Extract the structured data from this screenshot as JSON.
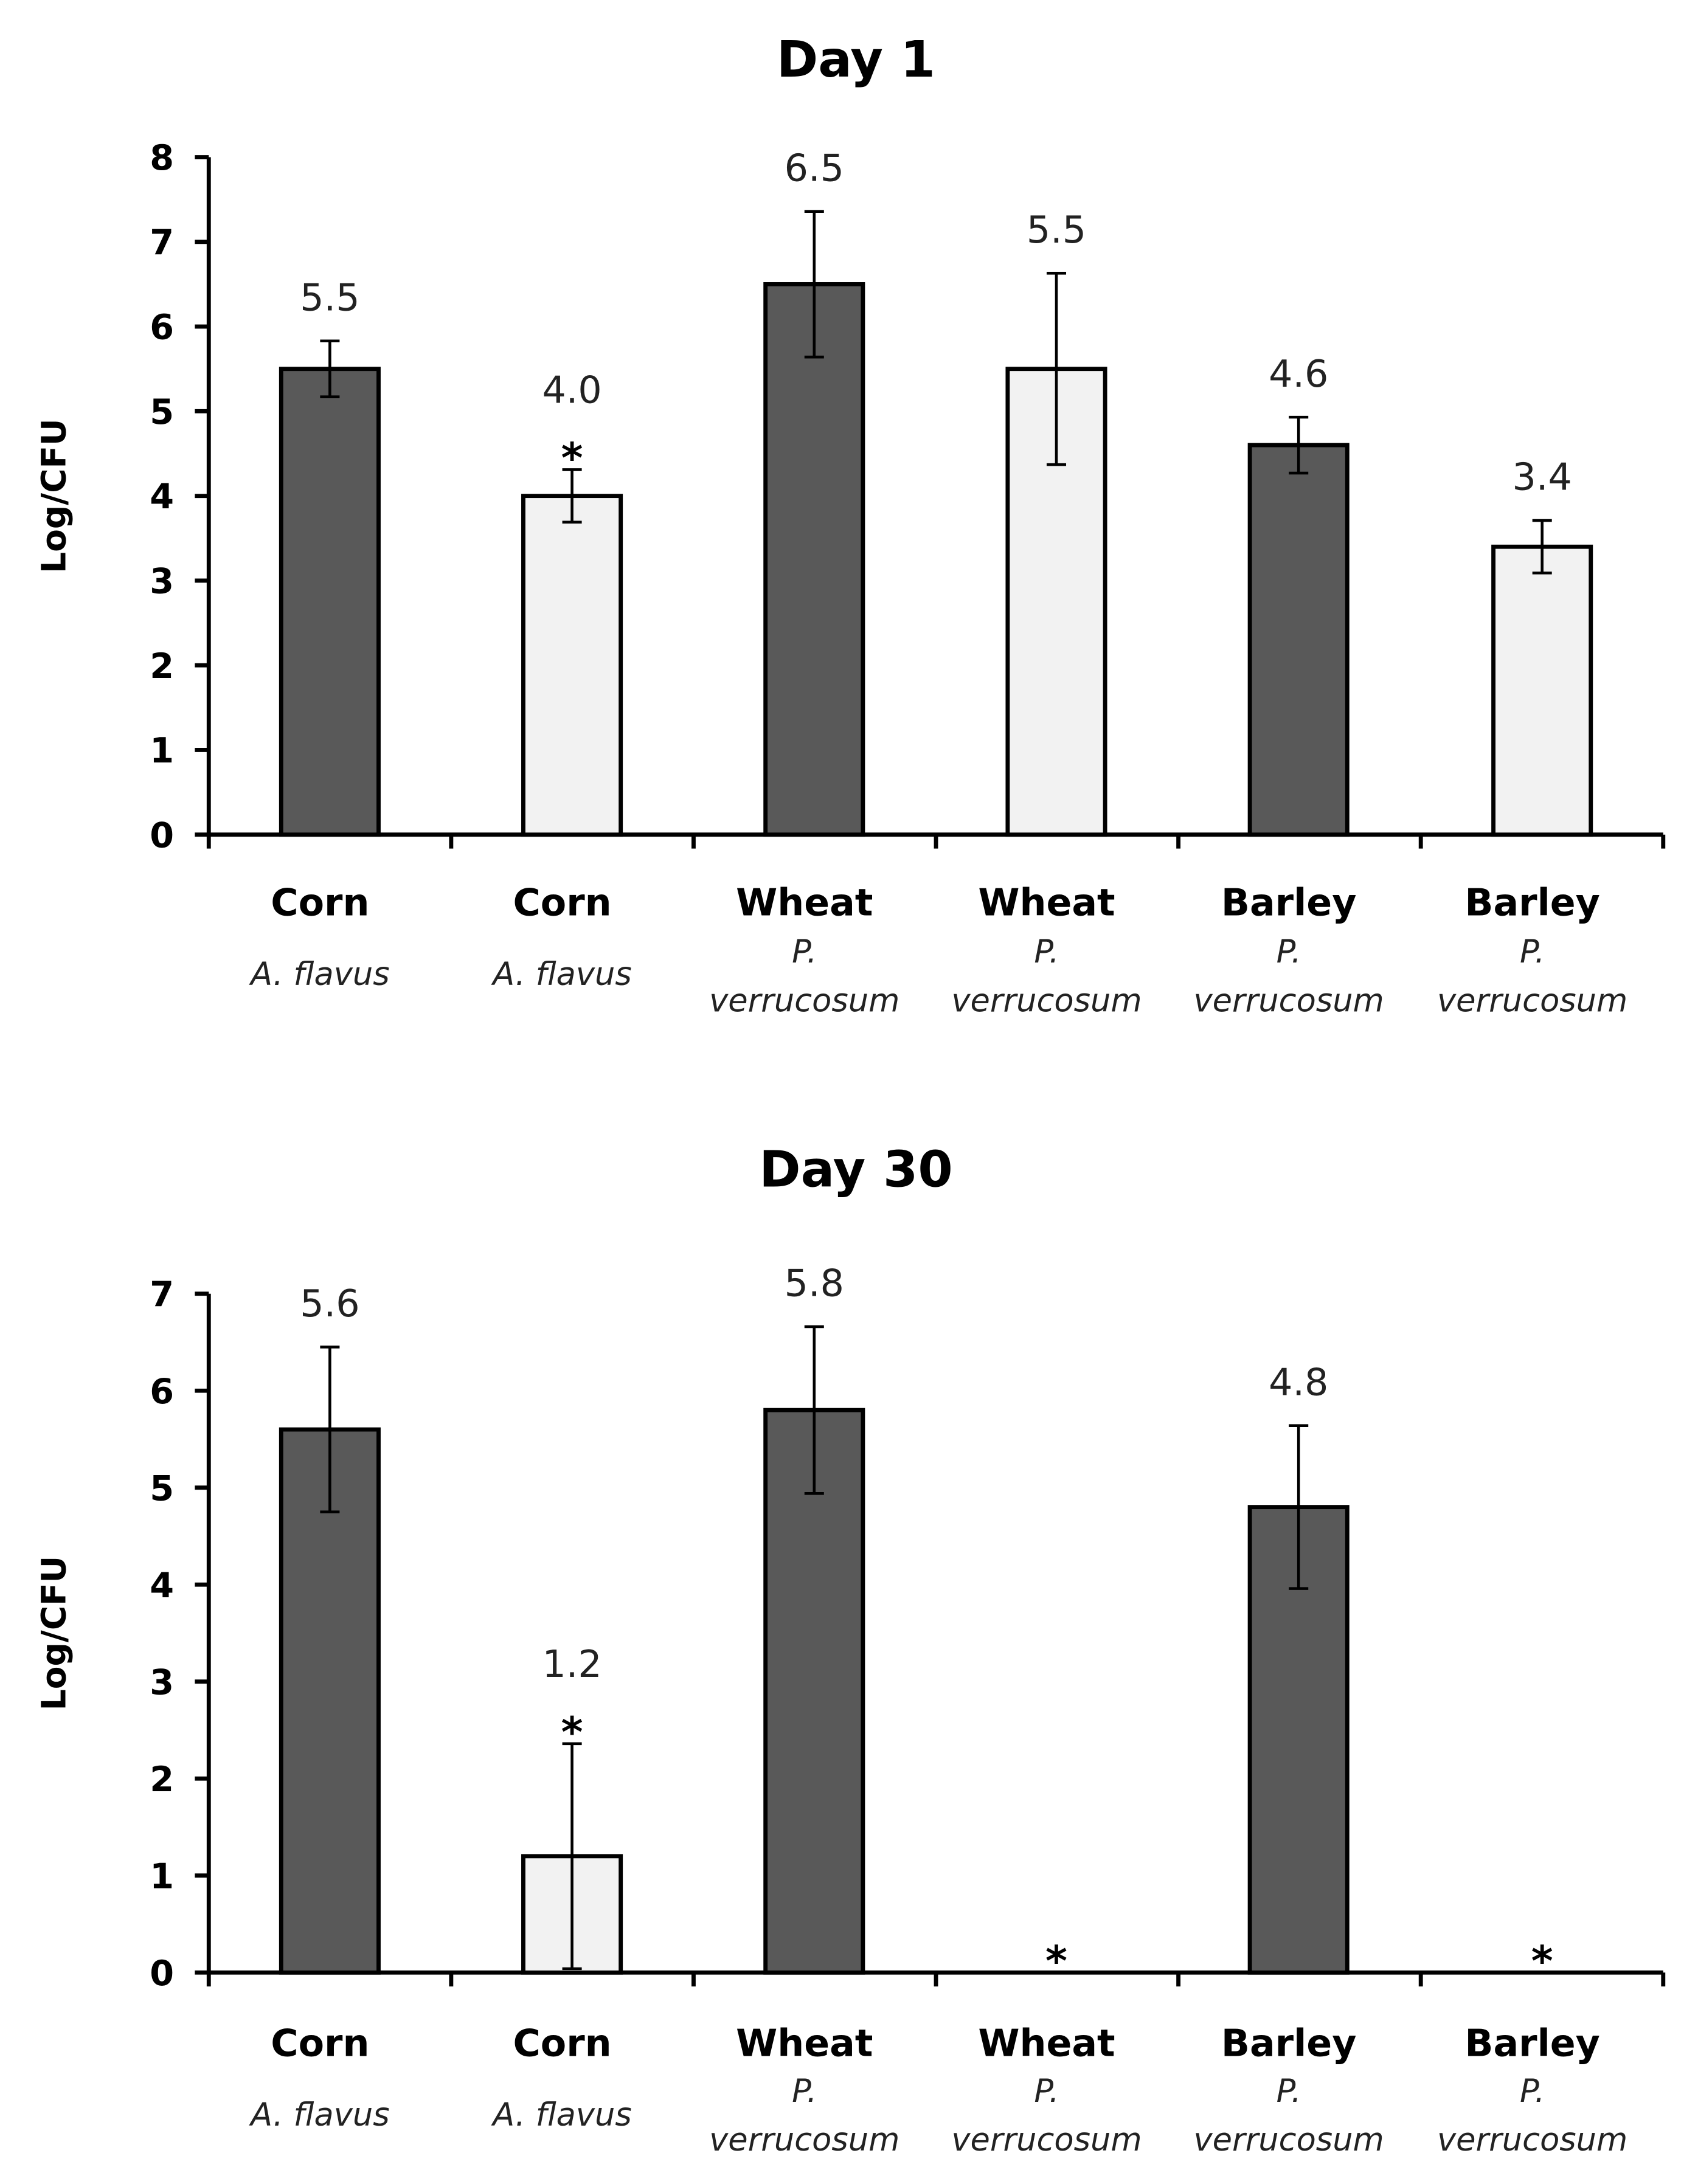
{
  "chart_data": [
    {
      "type": "bar",
      "title": "Day 1",
      "ylabel": "Log/CFU",
      "xlabel": "",
      "ylim": [
        0,
        8
      ],
      "yticks": [
        "0",
        "1",
        "2",
        "3",
        "4",
        "5",
        "6",
        "7",
        "8"
      ],
      "categories": [
        {
          "crop": "Corn",
          "species": [
            "A. flavus"
          ]
        },
        {
          "crop": "Corn",
          "species": [
            "A. flavus"
          ]
        },
        {
          "crop": "Wheat",
          "species": [
            "P.",
            "verrucosum"
          ]
        },
        {
          "crop": "Wheat",
          "species": [
            "P.",
            "verrucosum"
          ]
        },
        {
          "crop": "Barley",
          "species": [
            "P.",
            "verrucosum"
          ]
        },
        {
          "crop": "Barley",
          "species": [
            "P.",
            "verrucosum"
          ]
        }
      ],
      "values": [
        5.5,
        4.0,
        6.5,
        5.5,
        4.6,
        3.4
      ],
      "error": [
        0.33,
        0.31,
        0.86,
        1.13,
        0.33,
        0.31
      ],
      "data_labels": [
        "5.5",
        "4.0",
        "6.5",
        "5.5",
        "4.6",
        "3.4"
      ],
      "significance": [
        "",
        "*",
        "",
        "",
        "",
        ""
      ],
      "fill": [
        "dark",
        "light",
        "dark",
        "light",
        "dark",
        "light"
      ],
      "grid": false
    },
    {
      "type": "bar",
      "title": "Day 30",
      "ylabel": "Log/CFU",
      "xlabel": "",
      "ylim": [
        0,
        7
      ],
      "yticks": [
        "0",
        "1",
        "2",
        "3",
        "4",
        "5",
        "6",
        "7"
      ],
      "categories": [
        {
          "crop": "Corn",
          "species": [
            "A. flavus"
          ]
        },
        {
          "crop": "Corn",
          "species": [
            "A. flavus"
          ]
        },
        {
          "crop": "Wheat",
          "species": [
            "P.",
            "verrucosum"
          ]
        },
        {
          "crop": "Wheat",
          "species": [
            "P.",
            "verrucosum"
          ]
        },
        {
          "crop": "Barley",
          "species": [
            "P.",
            "verrucosum"
          ]
        },
        {
          "crop": "Barley",
          "species": [
            "P.",
            "verrucosum"
          ]
        }
      ],
      "values": [
        5.6,
        1.2,
        5.8,
        0,
        4.8,
        0
      ],
      "error": [
        0.85,
        1.16,
        0.86,
        0,
        0.84,
        0
      ],
      "data_labels": [
        "5.6",
        "1.2",
        "5.8",
        "",
        "4.8",
        ""
      ],
      "significance": [
        "",
        "*",
        "",
        "*",
        "",
        "*"
      ],
      "fill": [
        "dark",
        "light",
        "dark",
        "light",
        "dark",
        "light"
      ],
      "grid": false
    }
  ],
  "colors": {
    "dark": "#595959",
    "light": "#f2f2f2",
    "axis": "#000000"
  }
}
